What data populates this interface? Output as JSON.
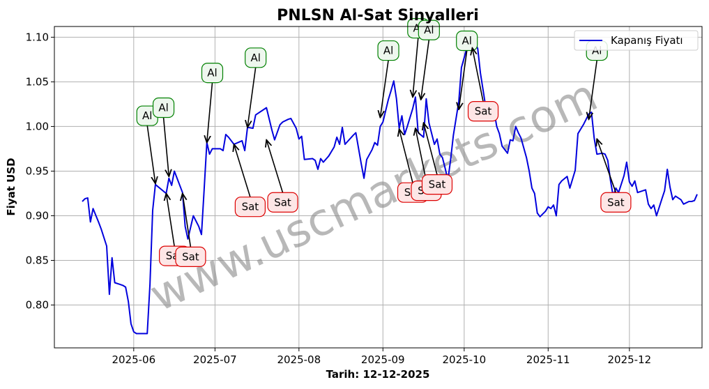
{
  "chart_data": {
    "type": "line",
    "title": "PNLSN Al-Sat Sinyalleri",
    "xlabel": "Tarih: 12-12-2025",
    "ylabel": "Fiyat USD",
    "watermark": "www.uscmarkets.com",
    "xlim": [
      "2025-05-13",
      "2025-12-17"
    ],
    "ylim": [
      0.752,
      1.112
    ],
    "yticks": [
      0.8,
      0.85,
      0.9,
      0.95,
      1.0,
      1.05,
      1.1
    ],
    "ytick_labels": [
      "0.80",
      "0.85",
      "0.90",
      "0.95",
      "1.00",
      "1.05",
      "1.10"
    ],
    "xticks": [
      "2025-06-01",
      "2025-07-01",
      "2025-08-01",
      "2025-09-01",
      "2025-10-01",
      "2025-11-01",
      "2025-12-01"
    ],
    "xtick_labels": [
      "2025-06",
      "2025-07",
      "2025-08",
      "2025-09",
      "2025-10",
      "2025-11",
      "2025-12"
    ],
    "grid": true,
    "legend_position": "top-right",
    "colors": {
      "line": "#0000dd",
      "buy_edge": "#008000",
      "buy_fill": "#eef7ee",
      "sell_edge": "#dd0000",
      "sell_fill": "#fde6e6",
      "grid": "#b0b0b0",
      "watermark": "#888888"
    },
    "series": [
      {
        "name": "Kapanış Fiyatı",
        "points": [
          [
            "2025-05-13",
            0.916
          ],
          [
            "2025-05-14",
            0.919
          ],
          [
            "2025-05-15",
            0.92
          ],
          [
            "2025-05-16",
            0.893
          ],
          [
            "2025-05-17",
            0.908
          ],
          [
            "2025-05-19",
            0.893
          ],
          [
            "2025-05-20",
            0.885
          ],
          [
            "2025-05-22",
            0.866
          ],
          [
            "2025-05-23",
            0.812
          ],
          [
            "2025-05-24",
            0.853
          ],
          [
            "2025-05-25",
            0.825
          ],
          [
            "2025-05-27",
            0.823
          ],
          [
            "2025-05-28",
            0.822
          ],
          [
            "2025-05-29",
            0.82
          ],
          [
            "2025-05-30",
            0.804
          ],
          [
            "2025-05-31",
            0.779
          ],
          [
            "2025-06-01",
            0.77
          ],
          [
            "2025-06-02",
            0.768
          ],
          [
            "2025-06-06",
            0.768
          ],
          [
            "2025-06-07",
            0.823
          ],
          [
            "2025-06-08",
            0.906
          ],
          [
            "2025-06-09",
            0.935
          ],
          [
            "2025-06-13",
            0.925
          ],
          [
            "2025-06-14",
            0.942
          ],
          [
            "2025-06-15",
            0.934
          ],
          [
            "2025-06-16",
            0.95
          ],
          [
            "2025-06-19",
            0.926
          ],
          [
            "2025-06-20",
            0.888
          ],
          [
            "2025-06-21",
            0.874
          ],
          [
            "2025-06-23",
            0.9
          ],
          [
            "2025-06-25",
            0.888
          ],
          [
            "2025-06-26",
            0.879
          ],
          [
            "2025-06-27",
            0.929
          ],
          [
            "2025-06-28",
            0.982
          ],
          [
            "2025-06-29",
            0.969
          ],
          [
            "2025-06-30",
            0.975
          ],
          [
            "2025-07-03",
            0.975
          ],
          [
            "2025-07-04",
            0.973
          ],
          [
            "2025-07-05",
            0.991
          ],
          [
            "2025-07-06",
            0.988
          ],
          [
            "2025-07-08",
            0.98
          ],
          [
            "2025-07-11",
            0.984
          ],
          [
            "2025-07-12",
            0.973
          ],
          [
            "2025-07-13",
            0.999
          ],
          [
            "2025-07-15",
            0.998
          ],
          [
            "2025-07-16",
            1.013
          ],
          [
            "2025-07-20",
            1.021
          ],
          [
            "2025-07-22",
            0.996
          ],
          [
            "2025-07-23",
            0.985
          ],
          [
            "2025-07-25",
            1.002
          ],
          [
            "2025-07-26",
            1.005
          ],
          [
            "2025-07-28",
            1.008
          ],
          [
            "2025-07-29",
            1.009
          ],
          [
            "2025-07-31",
            0.998
          ],
          [
            "2025-08-01",
            0.986
          ],
          [
            "2025-08-02",
            0.989
          ],
          [
            "2025-08-03",
            0.963
          ],
          [
            "2025-08-06",
            0.964
          ],
          [
            "2025-08-07",
            0.962
          ],
          [
            "2025-08-08",
            0.952
          ],
          [
            "2025-08-09",
            0.964
          ],
          [
            "2025-08-10",
            0.96
          ],
          [
            "2025-08-12",
            0.967
          ],
          [
            "2025-08-14",
            0.977
          ],
          [
            "2025-08-15",
            0.988
          ],
          [
            "2025-08-16",
            0.98
          ],
          [
            "2025-08-17",
            0.999
          ],
          [
            "2025-08-18",
            0.98
          ],
          [
            "2025-08-21",
            0.99
          ],
          [
            "2025-08-22",
            0.993
          ],
          [
            "2025-08-24",
            0.958
          ],
          [
            "2025-08-25",
            0.942
          ],
          [
            "2025-08-26",
            0.963
          ],
          [
            "2025-08-28",
            0.974
          ],
          [
            "2025-08-29",
            0.982
          ],
          [
            "2025-08-30",
            0.979
          ],
          [
            "2025-08-31",
            1.0
          ],
          [
            "2025-09-01",
            1.005
          ],
          [
            "2025-09-03",
            1.03
          ],
          [
            "2025-09-04",
            1.04
          ],
          [
            "2025-09-05",
            1.051
          ],
          [
            "2025-09-06",
            1.031
          ],
          [
            "2025-09-07",
            0.998
          ],
          [
            "2025-09-08",
            1.012
          ],
          [
            "2025-09-09",
            0.991
          ],
          [
            "2025-09-10",
            1.0
          ],
          [
            "2025-09-12",
            1.02
          ],
          [
            "2025-09-13",
            1.033
          ],
          [
            "2025-09-14",
            0.993
          ],
          [
            "2025-09-16",
            0.988
          ],
          [
            "2025-09-17",
            1.031
          ],
          [
            "2025-09-18",
            1.004
          ],
          [
            "2025-09-20",
            0.98
          ],
          [
            "2025-09-21",
            0.986
          ],
          [
            "2025-09-22",
            0.969
          ],
          [
            "2025-09-23",
            0.965
          ],
          [
            "2025-09-24",
            0.953
          ],
          [
            "2025-09-25",
            0.94
          ],
          [
            "2025-09-26",
            0.963
          ],
          [
            "2025-09-27",
            0.99
          ],
          [
            "2025-09-29",
            1.028
          ],
          [
            "2025-09-30",
            1.066
          ],
          [
            "2025-10-01",
            1.077
          ],
          [
            "2025-10-02",
            1.088
          ],
          [
            "2025-10-04",
            1.091
          ],
          [
            "2025-10-05",
            1.095
          ],
          [
            "2025-10-06",
            1.087
          ],
          [
            "2025-10-07",
            1.06
          ],
          [
            "2025-10-09",
            1.021
          ],
          [
            "2025-10-10",
            1.012
          ],
          [
            "2025-10-11",
            1.016
          ],
          [
            "2025-10-12",
            1.018
          ],
          [
            "2025-10-13",
            1.0
          ],
          [
            "2025-10-14",
            0.992
          ],
          [
            "2025-10-15",
            0.978
          ],
          [
            "2025-10-17",
            0.97
          ],
          [
            "2025-10-18",
            0.985
          ],
          [
            "2025-10-19",
            0.984
          ],
          [
            "2025-10-20",
            1.0
          ],
          [
            "2025-10-21",
            0.993
          ],
          [
            "2025-10-22",
            0.987
          ],
          [
            "2025-10-24",
            0.965
          ],
          [
            "2025-10-25",
            0.95
          ],
          [
            "2025-10-26",
            0.931
          ],
          [
            "2025-10-27",
            0.925
          ],
          [
            "2025-10-28",
            0.903
          ],
          [
            "2025-10-29",
            0.899
          ],
          [
            "2025-10-31",
            0.905
          ],
          [
            "2025-11-01",
            0.91
          ],
          [
            "2025-11-02",
            0.908
          ],
          [
            "2025-11-03",
            0.912
          ],
          [
            "2025-11-04",
            0.9
          ],
          [
            "2025-11-05",
            0.935
          ],
          [
            "2025-11-06",
            0.939
          ],
          [
            "2025-11-08",
            0.944
          ],
          [
            "2025-11-09",
            0.931
          ],
          [
            "2025-11-11",
            0.951
          ],
          [
            "2025-11-12",
            0.992
          ],
          [
            "2025-11-14",
            1.002
          ],
          [
            "2025-11-16",
            1.014
          ],
          [
            "2025-11-17",
            1.016
          ],
          [
            "2025-11-18",
            0.987
          ],
          [
            "2025-11-19",
            0.969
          ],
          [
            "2025-11-21",
            0.97
          ],
          [
            "2025-11-22",
            0.969
          ],
          [
            "2025-11-23",
            0.962
          ],
          [
            "2025-11-24",
            0.94
          ],
          [
            "2025-11-25",
            0.922
          ],
          [
            "2025-11-26",
            0.931
          ],
          [
            "2025-11-27",
            0.926
          ],
          [
            "2025-11-29",
            0.945
          ],
          [
            "2025-11-30",
            0.96
          ],
          [
            "2025-12-01",
            0.938
          ],
          [
            "2025-12-02",
            0.933
          ],
          [
            "2025-12-03",
            0.939
          ],
          [
            "2025-12-04",
            0.926
          ],
          [
            "2025-12-06",
            0.928
          ],
          [
            "2025-12-07",
            0.929
          ],
          [
            "2025-12-08",
            0.913
          ],
          [
            "2025-12-09",
            0.908
          ],
          [
            "2025-12-10",
            0.912
          ],
          [
            "2025-12-11",
            0.9
          ],
          [
            "2025-12-13",
            0.919
          ],
          [
            "2025-12-14",
            0.928
          ],
          [
            "2025-12-15",
            0.952
          ],
          [
            "2025-12-16",
            0.932
          ],
          [
            "2025-12-17",
            0.918
          ],
          [
            "2025-12-18",
            0.922
          ],
          [
            "2025-12-20",
            0.918
          ],
          [
            "2025-12-21",
            0.913
          ],
          [
            "2025-12-23",
            0.916
          ],
          [
            "2025-12-24",
            0.916
          ],
          [
            "2025-12-25",
            0.917
          ],
          [
            "2025-12-26",
            0.924
          ]
        ]
      }
    ],
    "annotations": [
      {
        "label": "Al",
        "kind": "buy",
        "x": "2025-06-09",
        "y": 0.936,
        "text_x": "2025-06-06",
        "text_y": 1.012
      },
      {
        "label": "Al",
        "kind": "buy",
        "x": "2025-06-14",
        "y": 0.944,
        "text_x": "2025-06-12",
        "text_y": 1.021
      },
      {
        "label": "Al",
        "kind": "buy",
        "x": "2025-06-28",
        "y": 0.982,
        "text_x": "2025-06-30",
        "text_y": 1.06
      },
      {
        "label": "Al",
        "kind": "buy",
        "x": "2025-07-13",
        "y": 0.999,
        "text_x": "2025-07-16",
        "text_y": 1.077
      },
      {
        "label": "Al",
        "kind": "buy",
        "x": "2025-08-31",
        "y": 1.01,
        "text_x": "2025-09-03",
        "text_y": 1.085
      },
      {
        "label": "Al",
        "kind": "buy",
        "x": "2025-09-12",
        "y": 1.033,
        "text_x": "2025-09-14",
        "text_y": 1.11
      },
      {
        "label": "Al",
        "kind": "buy",
        "x": "2025-09-15",
        "y": 1.03,
        "text_x": "2025-09-18",
        "text_y": 1.108
      },
      {
        "label": "Al",
        "kind": "buy",
        "x": "2025-09-29",
        "y": 1.019,
        "text_x": "2025-10-02",
        "text_y": 1.096
      },
      {
        "label": "Al",
        "kind": "buy",
        "x": "2025-11-16",
        "y": 1.008,
        "text_x": "2025-11-19",
        "text_y": 1.085
      },
      {
        "label": "Sat",
        "kind": "sell",
        "x": "2025-06-13",
        "y": 0.925,
        "text_x": "2025-06-16",
        "text_y": 0.855
      },
      {
        "label": "Sat",
        "kind": "sell",
        "x": "2025-06-19",
        "y": 0.925,
        "text_x": "2025-06-22",
        "text_y": 0.854
      },
      {
        "label": "Sat",
        "kind": "sell",
        "x": "2025-07-08",
        "y": 0.98,
        "text_x": "2025-07-14",
        "text_y": 0.91
      },
      {
        "label": "Sat",
        "kind": "sell",
        "x": "2025-07-20",
        "y": 0.985,
        "text_x": "2025-07-26",
        "text_y": 0.915
      },
      {
        "label": "Sat",
        "kind": "sell",
        "x": "2025-09-07",
        "y": 0.997,
        "text_x": "2025-09-12",
        "text_y": 0.926
      },
      {
        "label": "Sat",
        "kind": "sell",
        "x": "2025-09-13",
        "y": 0.998,
        "text_x": "2025-09-17",
        "text_y": 0.928
      },
      {
        "label": "Sat",
        "kind": "sell",
        "x": "2025-09-16",
        "y": 1.004,
        "text_x": "2025-09-21",
        "text_y": 0.935
      },
      {
        "label": "Sat",
        "kind": "sell",
        "x": "2025-10-04",
        "y": 1.088,
        "text_x": "2025-10-08",
        "text_y": 1.017
      },
      {
        "label": "Sat",
        "kind": "sell",
        "x": "2025-11-19",
        "y": 0.986,
        "text_x": "2025-11-26",
        "text_y": 0.915
      }
    ]
  }
}
